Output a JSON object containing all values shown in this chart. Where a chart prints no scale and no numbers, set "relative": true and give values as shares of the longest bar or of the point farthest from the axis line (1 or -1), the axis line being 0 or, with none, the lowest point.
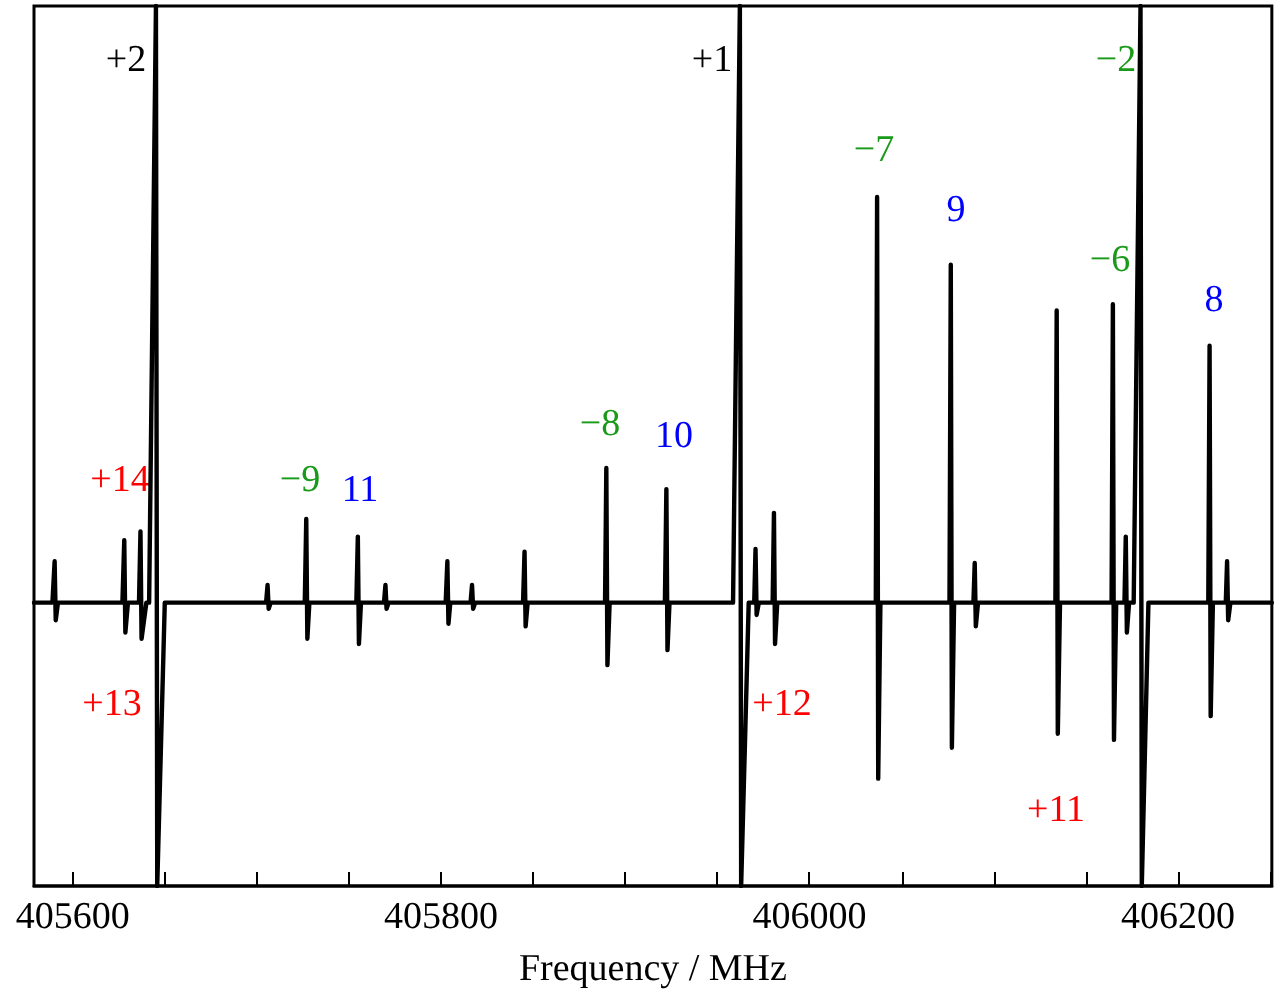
{
  "chart_data": {
    "type": "line",
    "relative": true,
    "xlabel": "Frequency / MHz",
    "xlim": [
      405579,
      406251
    ],
    "xticks": [
      405600,
      {
        "value": 405650,
        "label": null
      },
      {
        "value": 405700,
        "label": null
      },
      {
        "value": 405750,
        "label": null
      },
      405800,
      {
        "value": 405850,
        "label": null
      },
      {
        "value": 405900,
        "label": null
      },
      {
        "value": 405950,
        "label": null
      },
      406000,
      {
        "value": 406050,
        "label": null
      },
      {
        "value": 406100,
        "label": null
      },
      {
        "value": 406150,
        "label": null
      },
      406200,
      {
        "value": 406250,
        "label": null
      }
    ],
    "grid": false,
    "marker": "none",
    "line_style": "solid",
    "series": [
      {
        "color": "#000000",
        "x": [
          405579,
          405589,
          405590.2,
          405590.8,
          405592,
          405627,
          405628,
          405628.6,
          405630,
          405636,
          405636.8,
          405637.4,
          405640,
          405641.5,
          405645.2,
          405645.9,
          405650,
          405705,
          405705.8,
          405706.4,
          405707.5,
          405726,
          405726.8,
          405727.4,
          405728.5,
          405754,
          405754.8,
          405755.4,
          405756.5,
          405769,
          405769.8,
          405770.4,
          405771.5,
          405802.5,
          405803.4,
          405804,
          405805,
          405816,
          405816.8,
          405817.4,
          405818.5,
          405844.5,
          405845.3,
          405845.9,
          405847,
          405889,
          405889.7,
          405890.3,
          405891.5,
          405921.5,
          405922.3,
          405922.9,
          405924,
          405958.5,
          405962.2,
          405962.9,
          405967,
          405970,
          405970.7,
          405971.3,
          405972.5,
          405980,
          405980.7,
          405981.3,
          405982.5,
          406036,
          406036.7,
          406037.3,
          406038.5,
          406076,
          406076.7,
          406077.3,
          406078.5,
          406089,
          406089.7,
          406090.3,
          406091.5,
          406133.5,
          406134.2,
          406134.8,
          406136,
          406164,
          406164.7,
          406165.3,
          406166.5,
          406171,
          406171.7,
          406172.3,
          406173.5,
          406176,
          406179.7,
          406180.4,
          406184,
          406216.5,
          406217.2,
          406217.8,
          406219,
          406226,
          406226.7,
          406227.3,
          406228.5,
          406251
        ],
        "values": [
          0.322,
          0.322,
          0.369,
          0.302,
          0.322,
          0.322,
          0.393,
          0.288,
          0.322,
          0.322,
          0.403,
          0.281,
          0.322,
          0.322,
          1,
          0,
          0.322,
          0.322,
          0.342,
          0.315,
          0.322,
          0.322,
          0.417,
          0.281,
          0.322,
          0.322,
          0.397,
          0.275,
          0.322,
          0.322,
          0.342,
          0.315,
          0.322,
          0.322,
          0.369,
          0.298,
          0.322,
          0.322,
          0.342,
          0.315,
          0.322,
          0.322,
          0.38,
          0.295,
          0.322,
          0.322,
          0.475,
          0.251,
          0.322,
          0.322,
          0.451,
          0.268,
          0.322,
          0.322,
          1,
          0,
          0.322,
          0.322,
          0.383,
          0.308,
          0.322,
          0.322,
          0.424,
          0.275,
          0.322,
          0.322,
          0.783,
          0.122,
          0.322,
          0.322,
          0.706,
          0.157,
          0.322,
          0.322,
          0.367,
          0.295,
          0.322,
          0.322,
          0.654,
          0.173,
          0.322,
          0.322,
          0.661,
          0.166,
          0.322,
          0.322,
          0.397,
          0.288,
          0.322,
          0.322,
          1,
          0,
          0.322,
          0.322,
          0.614,
          0.193,
          0.322,
          0.322,
          0.369,
          0.302,
          0.322,
          0.322
        ]
      }
    ],
    "annotations": [
      "+2",
      "+1",
      "−2",
      "−7",
      "9",
      "−6",
      "8",
      "+14",
      "−9",
      "11",
      "−8",
      "10",
      "+13",
      "+12",
      "+11"
    ]
  }
}
